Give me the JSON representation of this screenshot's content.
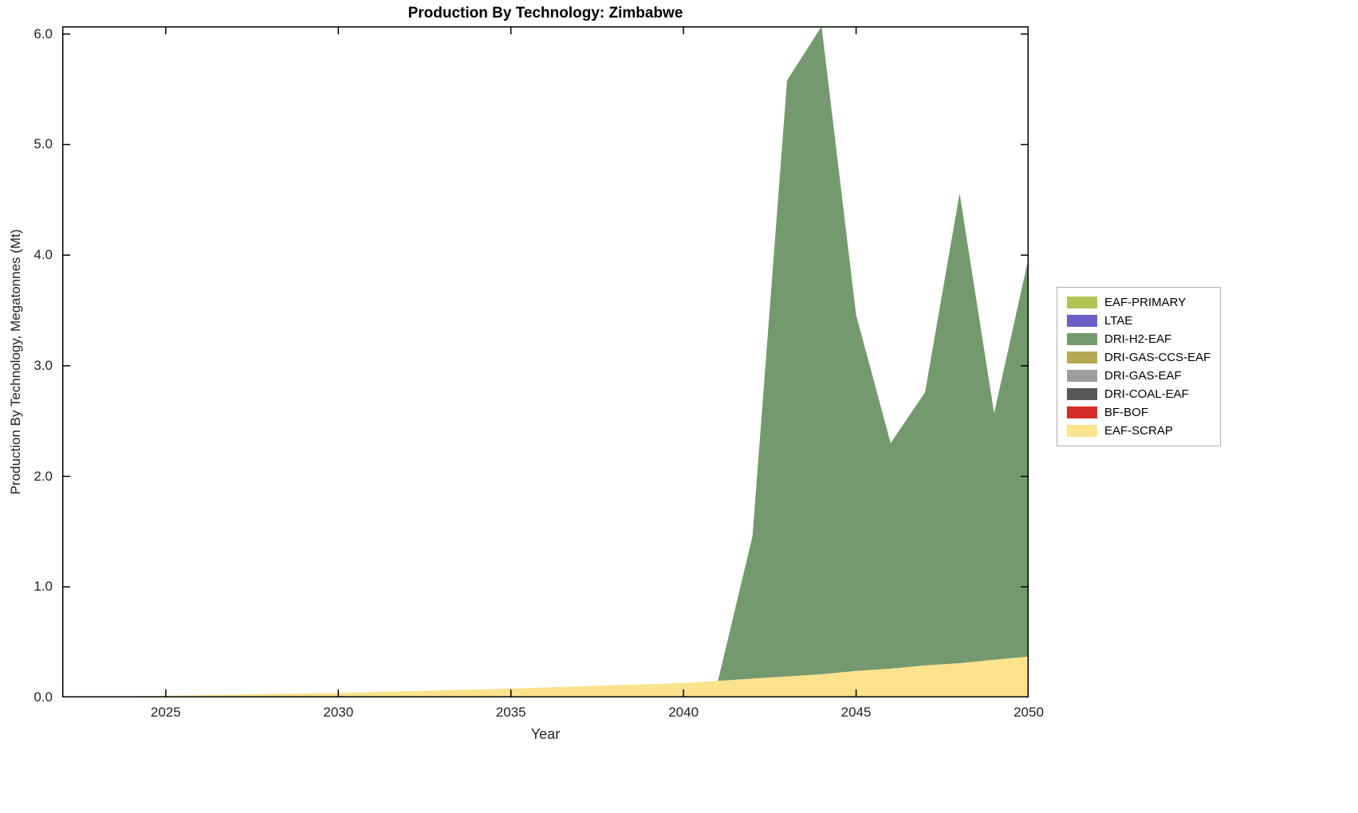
{
  "chart_data": {
    "type": "area",
    "title": "Production By Technology: Zimbabwe",
    "xlabel": "Year",
    "ylabel": "Production By Technology, Megatonnes (Mt)",
    "xlim": [
      2022,
      2050
    ],
    "ylim": [
      0,
      6.07
    ],
    "xticks": [
      2025,
      2030,
      2035,
      2040,
      2045,
      2050
    ],
    "xticklabels": [
      "2025",
      "2030",
      "2035",
      "2040",
      "2045",
      "2050"
    ],
    "yticks": [
      0,
      1,
      2,
      3,
      4,
      5,
      6
    ],
    "yticklabels": [
      "0.0",
      "1.0",
      "2.0",
      "3.0",
      "4.0",
      "5.0",
      "6.0"
    ],
    "grid": false,
    "legend_position": "right-outside",
    "legend": [
      {
        "label": "EAF-PRIMARY",
        "color": "#b3c255"
      },
      {
        "label": "LTAE",
        "color": "#6b5fc8"
      },
      {
        "label": "DRI-H2-EAF",
        "color": "#75996e"
      },
      {
        "label": "DRI-GAS-CCS-EAF",
        "color": "#b3aa52"
      },
      {
        "label": "DRI-GAS-EAF",
        "color": "#9d9d9d"
      },
      {
        "label": "DRI-COAL-EAF",
        "color": "#595959"
      },
      {
        "label": "BF-BOF",
        "color": "#d62b28"
      },
      {
        "label": "EAF-SCRAP",
        "color": "#fbe28c"
      }
    ],
    "x": [
      2022,
      2023,
      2024,
      2025,
      2026,
      2027,
      2028,
      2029,
      2030,
      2031,
      2032,
      2033,
      2034,
      2035,
      2036,
      2037,
      2038,
      2039,
      2040,
      2041,
      2042,
      2043,
      2044,
      2045,
      2046,
      2047,
      2048,
      2049,
      2050
    ],
    "series": [
      {
        "name": "EAF-SCRAP",
        "values": [
          0,
          0.005,
          0.01,
          0.015,
          0.02,
          0.025,
          0.03,
          0.035,
          0.04,
          0.048,
          0.056,
          0.064,
          0.072,
          0.08,
          0.09,
          0.1,
          0.11,
          0.12,
          0.13,
          0.15,
          0.17,
          0.19,
          0.21,
          0.24,
          0.26,
          0.29,
          0.31,
          0.34,
          0.37
        ]
      },
      {
        "name": "BF-BOF",
        "values": [
          0,
          0,
          0,
          0,
          0,
          0,
          0,
          0,
          0,
          0,
          0,
          0,
          0,
          0,
          0,
          0,
          0,
          0,
          0,
          0,
          0,
          0,
          0,
          0,
          0,
          0,
          0,
          0,
          0
        ]
      },
      {
        "name": "DRI-COAL-EAF",
        "values": [
          0,
          0,
          0,
          0,
          0,
          0,
          0,
          0,
          0,
          0,
          0,
          0,
          0,
          0,
          0,
          0,
          0,
          0,
          0,
          0,
          0,
          0,
          0,
          0,
          0,
          0,
          0,
          0,
          0
        ]
      },
      {
        "name": "DRI-GAS-EAF",
        "values": [
          0,
          0,
          0,
          0,
          0,
          0,
          0,
          0,
          0,
          0,
          0,
          0,
          0,
          0,
          0,
          0,
          0,
          0,
          0,
          0,
          0,
          0,
          0,
          0,
          0,
          0,
          0,
          0,
          0
        ]
      },
      {
        "name": "DRI-GAS-CCS-EAF",
        "values": [
          0,
          0,
          0,
          0,
          0,
          0,
          0,
          0,
          0,
          0,
          0,
          0,
          0,
          0,
          0,
          0,
          0,
          0,
          0,
          0,
          0,
          0,
          0,
          0,
          0,
          0,
          0,
          0,
          0
        ]
      },
      {
        "name": "DRI-H2-EAF",
        "values": [
          0,
          0,
          0,
          0,
          0,
          0,
          0,
          0,
          0,
          0,
          0,
          0,
          0,
          0,
          0,
          0,
          0,
          0,
          0,
          0,
          1.29,
          5.39,
          5.86,
          3.22,
          2.04,
          2.47,
          4.25,
          2.23,
          3.61
        ]
      },
      {
        "name": "LTAE",
        "values": [
          0,
          0,
          0,
          0,
          0,
          0,
          0,
          0,
          0,
          0,
          0,
          0,
          0,
          0,
          0,
          0,
          0,
          0,
          0,
          0,
          0,
          0,
          0,
          0,
          0,
          0,
          0,
          0,
          0
        ]
      },
      {
        "name": "EAF-PRIMARY",
        "values": [
          0,
          0,
          0,
          0,
          0,
          0,
          0,
          0,
          0,
          0,
          0,
          0,
          0,
          0,
          0,
          0,
          0,
          0,
          0,
          0,
          0,
          0,
          0,
          0,
          0,
          0,
          0,
          0,
          0
        ]
      }
    ]
  }
}
